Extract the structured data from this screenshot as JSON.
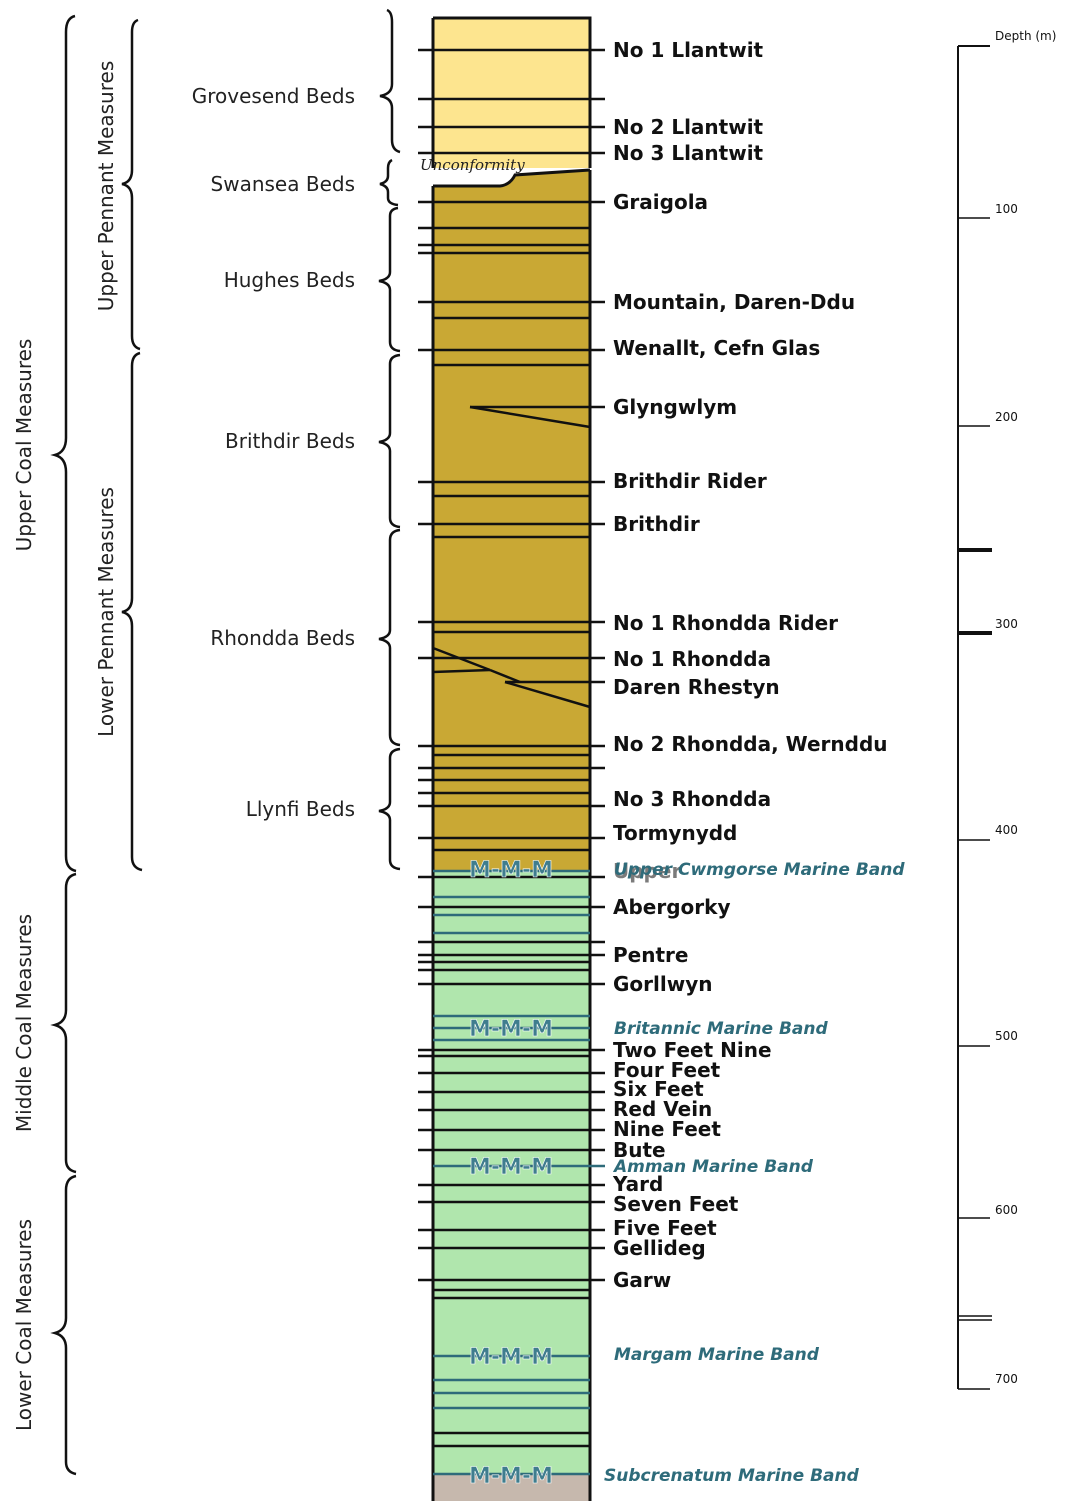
{
  "groups": {
    "upper_coal_measures": "Upper Coal Measures",
    "middle_coal_measures": "Middle Coal Measures",
    "lower_coal_measures": "Lower Coal Measures",
    "upper_pennant_measures": "Upper Pennant Measures",
    "lower_pennant_measures": "Lower Pennant Measures"
  },
  "beds": {
    "grovesend": "Grovesend Beds",
    "swansea": "Swansea Beds",
    "hughes": "Hughes Beds",
    "brithdir": "Brithdir Beds",
    "rhondda": "Rhondda Beds",
    "llynfi": "Llynfi Beds"
  },
  "unconformity": "Unconformity",
  "coals": {
    "no1_llantwit": "No 1 Llantwit",
    "no2_llantwit": "No 2 Llantwit",
    "no3_llantwit": "No 3 Llantwit",
    "graigola": "Graigola",
    "mountain": "Mountain, Daren-Ddu",
    "wenallt": "Wenallt, Cefn Glas",
    "glyngwlym": "Glyngwlym",
    "brithdir_rider": "Brithdir Rider",
    "brithdir": "Brithdir",
    "no1_rhondda_rider": "No 1 Rhondda Rider",
    "no1_rhondda": "No 1 Rhondda",
    "daren_rhestyn": "Daren Rhestyn",
    "no2_rhondda": "No 2 Rhondda, Wernddu",
    "no3_rhondda": "No 3 Rhondda",
    "tormynydd": "Tormynydd",
    "upper_obscured": "Upper",
    "abergorky": "Abergorky",
    "pentre": "Pentre",
    "gorllwyn": "Gorllwyn",
    "two_feet_nine": "Two Feet Nine",
    "four_feet": "Four Feet",
    "six_feet": "Six Feet",
    "red_vein": "Red Vein",
    "nine_feet": "Nine Feet",
    "bute": "Bute",
    "yard": "Yard",
    "seven_feet": "Seven Feet",
    "five_feet": "Five Feet",
    "gellideg": "Gellideg",
    "garw": "Garw"
  },
  "marine_bands": {
    "upper_cwmgorse": "Upper Cwmgorse Marine Band",
    "britannic": "Britannic Marine Band",
    "amman": "Amman Marine Band",
    "margam": "Margam Marine Band",
    "subcrenatum": "Subcrenatum Marine Band"
  },
  "marine_symbol": "M-M-M",
  "depth_scale": {
    "title": "Depth (m)",
    "ticks": [
      "100",
      "200",
      "300",
      "400",
      "500",
      "600",
      "700"
    ]
  },
  "colors": {
    "grovesend": "#fde58f",
    "pennant": "#c9a834",
    "coal_measures": "#b0e6ad",
    "basement": "#c6b8ad",
    "marine": "#2e6b7a"
  }
}
